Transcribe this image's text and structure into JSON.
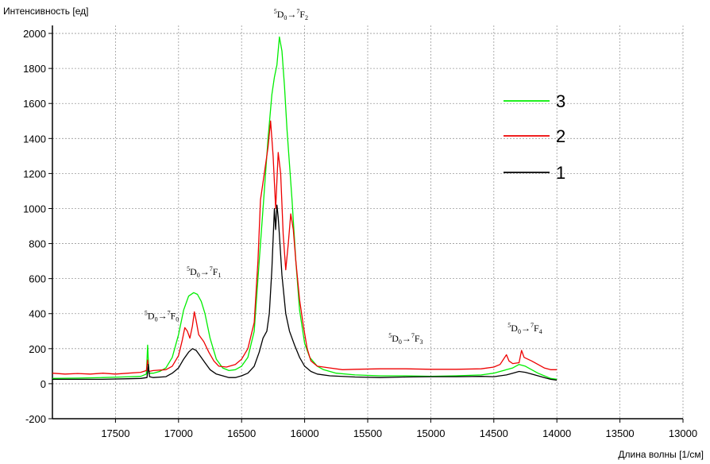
{
  "chart_data": {
    "type": "line",
    "ylabel": "Интенсивность [ед]",
    "xlabel": "Длина волны [1/см]",
    "xlim": [
      18000,
      13000
    ],
    "ylim": [
      -200,
      2100
    ],
    "x_ticks": [
      17500,
      17000,
      16500,
      16000,
      15500,
      15000,
      14500,
      14000,
      13500,
      13000
    ],
    "y_ticks": [
      -200,
      0,
      200,
      400,
      600,
      800,
      1000,
      1200,
      1400,
      1600,
      1800,
      2000
    ],
    "grid": true,
    "legend_position": "right",
    "series": [
      {
        "name": "3",
        "color": "#00ee00",
        "points": [
          [
            18000,
            30
          ],
          [
            17800,
            32
          ],
          [
            17600,
            35
          ],
          [
            17450,
            38
          ],
          [
            17300,
            42
          ],
          [
            17255,
            55
          ],
          [
            17245,
            220
          ],
          [
            17235,
            60
          ],
          [
            17200,
            60
          ],
          [
            17150,
            70
          ],
          [
            17100,
            90
          ],
          [
            17050,
            150
          ],
          [
            17000,
            280
          ],
          [
            16960,
            420
          ],
          [
            16920,
            500
          ],
          [
            16880,
            520
          ],
          [
            16850,
            510
          ],
          [
            16820,
            470
          ],
          [
            16790,
            400
          ],
          [
            16750,
            260
          ],
          [
            16700,
            140
          ],
          [
            16650,
            90
          ],
          [
            16600,
            75
          ],
          [
            16550,
            80
          ],
          [
            16500,
            100
          ],
          [
            16450,
            150
          ],
          [
            16400,
            300
          ],
          [
            16360,
            700
          ],
          [
            16320,
            1100
          ],
          [
            16290,
            1400
          ],
          [
            16260,
            1650
          ],
          [
            16240,
            1750
          ],
          [
            16220,
            1820
          ],
          [
            16200,
            1980
          ],
          [
            16180,
            1900
          ],
          [
            16160,
            1700
          ],
          [
            16140,
            1450
          ],
          [
            16100,
            1050
          ],
          [
            16070,
            700
          ],
          [
            16040,
            420
          ],
          [
            16000,
            230
          ],
          [
            15960,
            150
          ],
          [
            15900,
            100
          ],
          [
            15850,
            80
          ],
          [
            15750,
            60
          ],
          [
            15600,
            50
          ],
          [
            15400,
            45
          ],
          [
            15200,
            45
          ],
          [
            15000,
            42
          ],
          [
            14800,
            45
          ],
          [
            14600,
            50
          ],
          [
            14500,
            60
          ],
          [
            14450,
            70
          ],
          [
            14400,
            80
          ],
          [
            14350,
            90
          ],
          [
            14300,
            110
          ],
          [
            14250,
            100
          ],
          [
            14200,
            80
          ],
          [
            14150,
            60
          ],
          [
            14100,
            45
          ],
          [
            14050,
            30
          ],
          [
            14000,
            25
          ]
        ]
      },
      {
        "name": "2",
        "color": "#ee0000",
        "points": [
          [
            18000,
            60
          ],
          [
            17900,
            55
          ],
          [
            17800,
            58
          ],
          [
            17700,
            55
          ],
          [
            17600,
            60
          ],
          [
            17500,
            55
          ],
          [
            17400,
            60
          ],
          [
            17300,
            65
          ],
          [
            17255,
            75
          ],
          [
            17245,
            135
          ],
          [
            17235,
            70
          ],
          [
            17200,
            75
          ],
          [
            17100,
            80
          ],
          [
            17050,
            100
          ],
          [
            17000,
            160
          ],
          [
            16970,
            250
          ],
          [
            16950,
            320
          ],
          [
            16930,
            300
          ],
          [
            16910,
            260
          ],
          [
            16890,
            330
          ],
          [
            16875,
            410
          ],
          [
            16860,
            360
          ],
          [
            16840,
            280
          ],
          [
            16800,
            240
          ],
          [
            16760,
            180
          ],
          [
            16720,
            130
          ],
          [
            16680,
            100
          ],
          [
            16620,
            95
          ],
          [
            16550,
            110
          ],
          [
            16500,
            140
          ],
          [
            16450,
            200
          ],
          [
            16400,
            350
          ],
          [
            16370,
            700
          ],
          [
            16350,
            1050
          ],
          [
            16320,
            1200
          ],
          [
            16290,
            1350
          ],
          [
            16270,
            1500
          ],
          [
            16250,
            1300
          ],
          [
            16230,
            1000
          ],
          [
            16210,
            1320
          ],
          [
            16190,
            1200
          ],
          [
            16170,
            850
          ],
          [
            16150,
            650
          ],
          [
            16130,
            800
          ],
          [
            16110,
            970
          ],
          [
            16090,
            880
          ],
          [
            16070,
            700
          ],
          [
            16040,
            480
          ],
          [
            16010,
            330
          ],
          [
            15980,
            200
          ],
          [
            15950,
            130
          ],
          [
            15900,
            100
          ],
          [
            15800,
            90
          ],
          [
            15700,
            80
          ],
          [
            15600,
            82
          ],
          [
            15400,
            85
          ],
          [
            15200,
            85
          ],
          [
            15000,
            82
          ],
          [
            14800,
            82
          ],
          [
            14600,
            85
          ],
          [
            14500,
            95
          ],
          [
            14450,
            110
          ],
          [
            14400,
            165
          ],
          [
            14380,
            130
          ],
          [
            14350,
            115
          ],
          [
            14300,
            120
          ],
          [
            14280,
            190
          ],
          [
            14260,
            150
          ],
          [
            14200,
            130
          ],
          [
            14150,
            110
          ],
          [
            14100,
            90
          ],
          [
            14050,
            80
          ],
          [
            14000,
            80
          ]
        ]
      },
      {
        "name": "1",
        "color": "#000000",
        "points": [
          [
            18000,
            25
          ],
          [
            17800,
            25
          ],
          [
            17600,
            25
          ],
          [
            17400,
            28
          ],
          [
            17300,
            30
          ],
          [
            17250,
            35
          ],
          [
            17240,
            110
          ],
          [
            17230,
            40
          ],
          [
            17200,
            35
          ],
          [
            17100,
            40
          ],
          [
            17050,
            60
          ],
          [
            17000,
            90
          ],
          [
            16960,
            140
          ],
          [
            16920,
            180
          ],
          [
            16890,
            200
          ],
          [
            16860,
            190
          ],
          [
            16830,
            160
          ],
          [
            16790,
            120
          ],
          [
            16750,
            80
          ],
          [
            16700,
            55
          ],
          [
            16650,
            45
          ],
          [
            16600,
            35
          ],
          [
            16550,
            35
          ],
          [
            16500,
            45
          ],
          [
            16450,
            60
          ],
          [
            16400,
            100
          ],
          [
            16360,
            180
          ],
          [
            16330,
            260
          ],
          [
            16300,
            300
          ],
          [
            16280,
            400
          ],
          [
            16260,
            650
          ],
          [
            16240,
            1000
          ],
          [
            16230,
            880
          ],
          [
            16220,
            1020
          ],
          [
            16210,
            950
          ],
          [
            16200,
            850
          ],
          [
            16180,
            620
          ],
          [
            16150,
            400
          ],
          [
            16120,
            300
          ],
          [
            16080,
            220
          ],
          [
            16040,
            150
          ],
          [
            16000,
            100
          ],
          [
            15950,
            70
          ],
          [
            15900,
            55
          ],
          [
            15800,
            45
          ],
          [
            15600,
            38
          ],
          [
            15400,
            35
          ],
          [
            15200,
            38
          ],
          [
            15000,
            40
          ],
          [
            14800,
            40
          ],
          [
            14600,
            42
          ],
          [
            14500,
            40
          ],
          [
            14450,
            45
          ],
          [
            14400,
            50
          ],
          [
            14350,
            60
          ],
          [
            14300,
            70
          ],
          [
            14250,
            65
          ],
          [
            14200,
            55
          ],
          [
            14150,
            45
          ],
          [
            14100,
            35
          ],
          [
            14050,
            25
          ],
          [
            14000,
            20
          ]
        ]
      }
    ],
    "annotations": [
      {
        "left": "5D0",
        "right": "7F0",
        "x": 17270,
        "y": 370
      },
      {
        "left": "5D0",
        "right": "7F1",
        "x": 16935,
        "y": 620
      },
      {
        "left": "5D0",
        "right": "7F2",
        "x": 16245,
        "y": 2090
      },
      {
        "left": "5D0",
        "right": "7F3",
        "x": 15335,
        "y": 240
      },
      {
        "left": "5D0",
        "right": "7F4",
        "x": 14390,
        "y": 300
      }
    ]
  }
}
